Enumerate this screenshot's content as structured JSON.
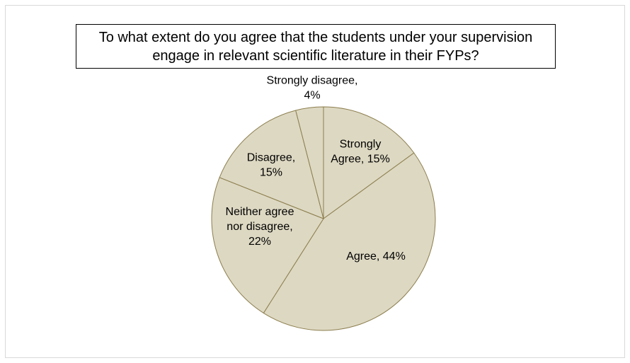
{
  "chart_data": {
    "type": "pie",
    "title": "To what extent do you agree that the students under your supervision engage in relevant scientific literature in their FYPs?",
    "slices": [
      {
        "label": "Strongly Agree",
        "value": 15,
        "display": [
          "Strongly",
          "Agree, 15%"
        ]
      },
      {
        "label": "Agree",
        "value": 44,
        "display": [
          "Agree, 44%"
        ]
      },
      {
        "label": "Neither agree nor disagree",
        "value": 22,
        "display": [
          "Neither agree",
          "nor disagree,",
          "22%"
        ]
      },
      {
        "label": "Disagree",
        "value": 15,
        "display": [
          "Disagree,",
          "15%"
        ]
      },
      {
        "label": "Strongly disagree",
        "value": 4,
        "display": [
          "Strongly disagree,",
          "4%"
        ]
      }
    ],
    "unit": "%",
    "legend": "none",
    "colors": {
      "fill": "#ddd8c2",
      "stroke": "#8c7e4e"
    }
  }
}
